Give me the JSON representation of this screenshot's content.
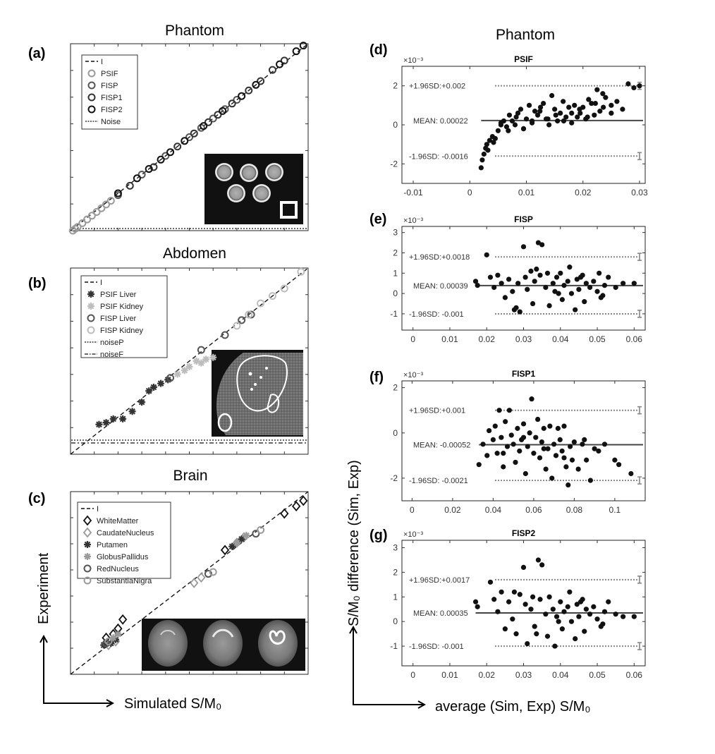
{
  "figure": {
    "left_title_top": "Phantom",
    "left_title_mid": "Abdomen",
    "left_title_bot": "Brain",
    "right_title": "Phantom",
    "left_xlabel": "Simulated S/M₀",
    "left_ylabel": "Experiment",
    "right_xlabel": "average (Sim, Exp) S/M₀",
    "right_ylabel": "S/M₀ difference (Sim, Exp)",
    "colors": {
      "black": "#111111",
      "dark": "#333333",
      "mid": "#555555",
      "light": "#9a9a9a",
      "vlight": "#bdbdbd"
    }
  },
  "chart_data": [
    {
      "id": "a",
      "panel_label": "(a)",
      "type": "scatter",
      "title": "Phantom",
      "xlabel": "Simulated S/M₀",
      "ylabel": "Experiment",
      "xlim": [
        0,
        1
      ],
      "ylim": [
        0,
        1
      ],
      "legend": [
        "I",
        "PSIF",
        "FISP",
        "FISP1",
        "FISP2",
        "Noise"
      ],
      "series": [
        {
          "name": "PSIF",
          "x": [
            0.01,
            0.02,
            0.03,
            0.05,
            0.07,
            0.09,
            0.11,
            0.13,
            0.15,
            0.17
          ],
          "y": [
            0.0,
            0.01,
            0.02,
            0.04,
            0.06,
            0.08,
            0.1,
            0.12,
            0.14,
            0.16
          ]
        },
        {
          "name": "FISP",
          "x": [
            0.2,
            0.3,
            0.4,
            0.5,
            0.55,
            0.6,
            0.65,
            0.7
          ],
          "y": [
            0.19,
            0.3,
            0.4,
            0.5,
            0.55,
            0.6,
            0.65,
            0.7
          ]
        },
        {
          "name": "FISP1",
          "x": [
            0.25,
            0.35,
            0.45,
            0.52,
            0.58,
            0.62,
            0.68,
            0.75,
            0.8,
            0.85,
            0.9
          ],
          "y": [
            0.24,
            0.34,
            0.45,
            0.52,
            0.58,
            0.62,
            0.68,
            0.75,
            0.8,
            0.86,
            0.91
          ]
        },
        {
          "name": "FISP2",
          "x": [
            0.2,
            0.28,
            0.33,
            0.38,
            0.42,
            0.48,
            0.56,
            0.64,
            0.72,
            0.78,
            0.88,
            0.95,
            0.98
          ],
          "y": [
            0.2,
            0.28,
            0.33,
            0.38,
            0.42,
            0.48,
            0.56,
            0.64,
            0.72,
            0.78,
            0.89,
            0.96,
            0.99
          ]
        }
      ]
    },
    {
      "id": "b",
      "panel_label": "(b)",
      "type": "scatter",
      "title": "Abdomen",
      "xlim": [
        0,
        1
      ],
      "ylim": [
        0,
        1
      ],
      "legend": [
        "I",
        "PSIF Liver",
        "PSIF Kidney",
        "FISP Liver",
        "FISP Kidney",
        "noiseP",
        "noiseF"
      ],
      "series": [
        {
          "name": "PSIF Liver",
          "x": [
            0.12,
            0.15,
            0.18,
            0.22,
            0.26,
            0.3,
            0.33,
            0.35,
            0.38,
            0.41
          ],
          "y": [
            0.16,
            0.17,
            0.19,
            0.19,
            0.23,
            0.28,
            0.34,
            0.36,
            0.38,
            0.4
          ]
        },
        {
          "name": "PSIF Kidney",
          "x": [
            0.45,
            0.48,
            0.5,
            0.53,
            0.55,
            0.57,
            0.6
          ],
          "y": [
            0.43,
            0.45,
            0.47,
            0.5,
            0.49,
            0.51,
            0.52
          ]
        },
        {
          "name": "FISP Liver",
          "x": [
            0.42,
            0.55,
            0.65,
            0.72,
            0.76
          ],
          "y": [
            0.41,
            0.56,
            0.64,
            0.72,
            0.75
          ]
        },
        {
          "name": "FISP Kidney",
          "x": [
            0.7,
            0.75,
            0.8,
            0.85,
            0.9,
            0.97
          ],
          "y": [
            0.69,
            0.75,
            0.81,
            0.85,
            0.89,
            0.98
          ]
        }
      ]
    },
    {
      "id": "c",
      "panel_label": "(c)",
      "type": "scatter",
      "title": "Brain",
      "xlim": [
        0,
        1
      ],
      "ylim": [
        0,
        1
      ],
      "legend": [
        "I",
        "WhiteMatter",
        "CaudateNucleus",
        "Putamen",
        "GlobusPallidus",
        "RedNucleus",
        "SubstantiaNigra"
      ],
      "series": [
        {
          "name": "WhiteMatter",
          "x": [
            0.15,
            0.18,
            0.2,
            0.22,
            0.65,
            0.9,
            0.95,
            0.98
          ],
          "y": [
            0.2,
            0.22,
            0.25,
            0.3,
            0.68,
            0.88,
            0.92,
            0.95
          ]
        },
        {
          "name": "CaudateNucleus",
          "x": [
            0.16,
            0.19,
            0.52,
            0.55,
            0.7,
            0.73
          ],
          "y": [
            0.16,
            0.18,
            0.5,
            0.53,
            0.72,
            0.75
          ]
        },
        {
          "name": "Putamen",
          "x": [
            0.14,
            0.17,
            0.19,
            0.68,
            0.72
          ],
          "y": [
            0.16,
            0.17,
            0.19,
            0.7,
            0.74
          ]
        },
        {
          "name": "GlobusPallidus",
          "x": [
            0.18,
            0.2,
            0.7,
            0.74
          ],
          "y": [
            0.2,
            0.22,
            0.72,
            0.76
          ]
        },
        {
          "name": "RedNucleus",
          "x": [
            0.15,
            0.58,
            0.78
          ],
          "y": [
            0.17,
            0.55,
            0.77
          ]
        },
        {
          "name": "SubstantiaNigra",
          "x": [
            0.16,
            0.6,
            0.8
          ],
          "y": [
            0.18,
            0.56,
            0.79
          ]
        }
      ]
    },
    {
      "id": "d",
      "panel_label": "(d)",
      "type": "scatter",
      "title": "PSIF",
      "xlim": [
        -0.012,
        0.031
      ],
      "ylim": [
        -3,
        3
      ],
      "y_multiplier": "×10⁻³",
      "xticks": [
        -0.01,
        0,
        0.01,
        0.02,
        0.03
      ],
      "xticklabels": [
        "-0.01",
        "0",
        "0.01",
        "0.02",
        "0.03"
      ],
      "yticks": [
        -2,
        0,
        2
      ],
      "yticklabels": [
        "-2",
        "0",
        "2"
      ],
      "mean": 0.22,
      "upper": 2.0,
      "lower": -1.6,
      "mean_line_start": 0.002,
      "mean_label": "MEAN: 0.00022",
      "upper_label": "+1.96SD:+0.002",
      "lower_label": "-1.96SD: -0.0016",
      "x": [
        0.002,
        0.0022,
        0.0025,
        0.0028,
        0.003,
        0.0032,
        0.0035,
        0.004,
        0.0042,
        0.0045,
        0.005,
        0.0055,
        0.006,
        0.0065,
        0.007,
        0.0075,
        0.008,
        0.0085,
        0.009,
        0.0095,
        0.01,
        0.0105,
        0.011,
        0.0115,
        0.012,
        0.0125,
        0.013,
        0.0135,
        0.014,
        0.0145,
        0.015,
        0.0155,
        0.016,
        0.0165,
        0.017,
        0.0175,
        0.018,
        0.0185,
        0.019,
        0.0195,
        0.02,
        0.0205,
        0.021,
        0.0215,
        0.022,
        0.0225,
        0.023,
        0.0235,
        0.024,
        0.025,
        0.026,
        0.027,
        0.028,
        0.029,
        0.03,
        0.0055,
        0.0068,
        0.0082,
        0.0095,
        0.011,
        0.0124,
        0.0138,
        0.0152,
        0.0166,
        0.018,
        0.0194,
        0.0208,
        0.0222,
        0.0236,
        0.025
      ],
      "y": [
        -2.2,
        -1.8,
        -1.5,
        -1.2,
        -1.0,
        -1.3,
        -0.8,
        -0.6,
        -0.9,
        -0.7,
        -0.3,
        0.1,
        0.2,
        -0.1,
        0.5,
        0.2,
        0.0,
        0.6,
        0.8,
        -0.2,
        0.3,
        1.0,
        0.2,
        0.7,
        0.5,
        0.9,
        1.1,
        0.3,
        0.0,
        1.5,
        0.8,
        0.2,
        0.6,
        1.2,
        0.4,
        0.9,
        0.1,
        1.0,
        0.4,
        0.6,
        0.9,
        0.3,
        1.3,
        1.1,
        0.5,
        1.8,
        0.7,
        1.6,
        1.4,
        1.0,
        1.2,
        0.8,
        2.1,
        1.9,
        2.0,
        0.0,
        -0.3,
        0.4,
        -0.2,
        0.1,
        0.7,
        0.3,
        0.5,
        0.2,
        0.6,
        0.8,
        0.4,
        1.1,
        0.9,
        0.6
      ]
    },
    {
      "id": "e",
      "panel_label": "(e)",
      "type": "scatter",
      "title": "FISP",
      "xlim": [
        -0.003,
        0.063
      ],
      "ylim": [
        -1.8,
        3.3
      ],
      "y_multiplier": "×10⁻³",
      "xticks": [
        0,
        0.01,
        0.02,
        0.03,
        0.04,
        0.05,
        0.06
      ],
      "xticklabels": [
        "0",
        "0.01",
        "0.02",
        "0.03",
        "0.04",
        "0.05",
        "0.06"
      ],
      "yticks": [
        -1,
        0,
        1,
        2,
        3
      ],
      "yticklabels": [
        "-1",
        "0",
        "1",
        "2",
        "3"
      ],
      "mean": 0.39,
      "upper": 1.8,
      "lower": -1.0,
      "mean_line_start": 0.017,
      "mean_label": "MEAN: 0.00039",
      "upper_label": "+1.96SD:+0.0018",
      "lower_label": "-1.96SD: -0.001",
      "x": [
        0.017,
        0.0175,
        0.02,
        0.021,
        0.022,
        0.023,
        0.024,
        0.025,
        0.026,
        0.027,
        0.028,
        0.0285,
        0.029,
        0.03,
        0.0305,
        0.031,
        0.032,
        0.0325,
        0.033,
        0.034,
        0.0345,
        0.035,
        0.036,
        0.0365,
        0.037,
        0.038,
        0.0385,
        0.039,
        0.04,
        0.0405,
        0.041,
        0.042,
        0.0425,
        0.043,
        0.044,
        0.0445,
        0.045,
        0.046,
        0.0465,
        0.047,
        0.048,
        0.049,
        0.05,
        0.0505,
        0.051,
        0.052,
        0.053,
        0.055,
        0.057,
        0.06,
        0.0275,
        0.0335,
        0.0395,
        0.0455,
        0.0515
      ],
      "y": [
        0.6,
        0.4,
        1.9,
        0.8,
        0.3,
        0.9,
        0.5,
        -0.2,
        0.7,
        0.1,
        -0.7,
        0.5,
        -0.9,
        2.3,
        0.8,
        0.2,
        1.1,
        -0.5,
        0.6,
        2.5,
        0.9,
        2.4,
        0.3,
        1.0,
        -0.6,
        0.5,
        0.1,
        0.8,
        1.0,
        -0.3,
        0.4,
        0.6,
        1.3,
        0.0,
        -0.8,
        0.7,
        0.2,
        0.9,
        -0.4,
        0.5,
        0.3,
        0.6,
        0.1,
        1.0,
        -0.2,
        0.4,
        0.8,
        0.3,
        0.5,
        0.5,
        -0.8,
        1.2,
        0.0,
        0.8,
        -0.1
      ]
    },
    {
      "id": "f",
      "panel_label": "(f)",
      "type": "scatter",
      "title": "FISP1",
      "xlim": [
        -0.005,
        0.115
      ],
      "ylim": [
        -3,
        2.3
      ],
      "y_multiplier": "×10⁻³",
      "xticks": [
        0,
        0.02,
        0.04,
        0.06,
        0.08,
        0.1
      ],
      "xticklabels": [
        "0",
        "0.02",
        "0.04",
        "0.06",
        "0.08",
        "0.1"
      ],
      "yticks": [
        -2,
        0,
        2
      ],
      "yticklabels": [
        "-2",
        "0",
        "2"
      ],
      "mean": -0.52,
      "upper": 1.0,
      "lower": -2.1,
      "mean_line_start": 0.033,
      "mean_label": "MEAN: -0.00052",
      "upper_label": "+1.96SD:+0.001",
      "lower_label": "-1.96SD: -0.0021",
      "x": [
        0.033,
        0.035,
        0.037,
        0.038,
        0.04,
        0.041,
        0.042,
        0.043,
        0.044,
        0.045,
        0.046,
        0.047,
        0.048,
        0.049,
        0.05,
        0.051,
        0.052,
        0.053,
        0.054,
        0.055,
        0.056,
        0.057,
        0.058,
        0.059,
        0.06,
        0.061,
        0.062,
        0.063,
        0.064,
        0.065,
        0.066,
        0.067,
        0.068,
        0.069,
        0.07,
        0.071,
        0.072,
        0.073,
        0.074,
        0.075,
        0.076,
        0.077,
        0.078,
        0.079,
        0.08,
        0.082,
        0.084,
        0.086,
        0.088,
        0.09,
        0.092,
        0.095,
        0.1,
        0.102,
        0.108,
        0.045,
        0.055,
        0.065,
        0.075,
        0.085
      ],
      "y": [
        -1.4,
        -0.5,
        -1.0,
        0.1,
        -0.3,
        0.3,
        -0.9,
        1.0,
        -0.2,
        -1.5,
        0.5,
        -0.6,
        1.0,
        -0.1,
        -0.5,
        -1.3,
        0.2,
        -0.8,
        -0.3,
        0.4,
        -1.8,
        -0.6,
        0.0,
        1.5,
        -0.9,
        -0.2,
        0.6,
        -1.1,
        -0.4,
        0.2,
        -1.6,
        -0.7,
        0.3,
        -2.0,
        -0.5,
        -1.0,
        0.2,
        -0.3,
        -0.8,
        0.3,
        -1.5,
        -2.3,
        -0.6,
        -1.2,
        -0.4,
        -1.6,
        -0.5,
        -1.2,
        -2.1,
        -0.7,
        -0.8,
        -0.5,
        -1.2,
        -1.4,
        -1.8,
        -0.9,
        -0.2,
        -0.7,
        -1.1,
        -0.3
      ]
    },
    {
      "id": "g",
      "panel_label": "(g)",
      "type": "scatter",
      "title": "FISP2",
      "xlim": [
        -0.003,
        0.063
      ],
      "ylim": [
        -1.8,
        3.3
      ],
      "y_multiplier": "×10⁻³",
      "xticks": [
        0,
        0.01,
        0.02,
        0.03,
        0.04,
        0.05,
        0.06
      ],
      "xticklabels": [
        "0",
        "0.01",
        "0.02",
        "0.03",
        "0.04",
        "0.05",
        "0.06"
      ],
      "yticks": [
        -1,
        0,
        1,
        2,
        3
      ],
      "yticklabels": [
        "-1",
        "0",
        "1",
        "2",
        "3"
      ],
      "mean": 0.35,
      "upper": 1.7,
      "lower": -1.0,
      "mean_line_start": 0.017,
      "mean_label": "MEAN: 0.00035",
      "upper_label": "+1.96SD:+0.0017",
      "lower_label": "-1.96SD: -0.001",
      "x": [
        0.017,
        0.0175,
        0.021,
        0.022,
        0.023,
        0.024,
        0.025,
        0.026,
        0.027,
        0.028,
        0.029,
        0.03,
        0.0305,
        0.031,
        0.032,
        0.0325,
        0.033,
        0.034,
        0.0345,
        0.035,
        0.036,
        0.0365,
        0.037,
        0.038,
        0.0385,
        0.039,
        0.04,
        0.0405,
        0.041,
        0.042,
        0.0425,
        0.043,
        0.044,
        0.0445,
        0.045,
        0.046,
        0.0465,
        0.047,
        0.048,
        0.049,
        0.05,
        0.051,
        0.052,
        0.053,
        0.055,
        0.057,
        0.06,
        0.0275,
        0.0335,
        0.0395,
        0.0455,
        0.0515
      ],
      "y": [
        0.8,
        0.6,
        1.6,
        0.9,
        0.4,
        1.2,
        -0.3,
        0.8,
        0.1,
        -0.5,
        1.1,
        2.2,
        0.7,
        -0.9,
        0.5,
        1.0,
        -0.2,
        2.5,
        0.9,
        2.3,
        0.3,
        -0.6,
        1.0,
        0.5,
        -1.0,
        0.2,
        0.8,
        -0.3,
        0.4,
        0.6,
        1.2,
        0.0,
        -0.7,
        0.7,
        0.2,
        0.9,
        -0.4,
        0.5,
        0.3,
        0.6,
        0.1,
        -0.2,
        0.4,
        0.8,
        0.3,
        0.2,
        0.2,
        1.2,
        -0.5,
        0.0,
        0.8,
        -0.1
      ]
    }
  ]
}
